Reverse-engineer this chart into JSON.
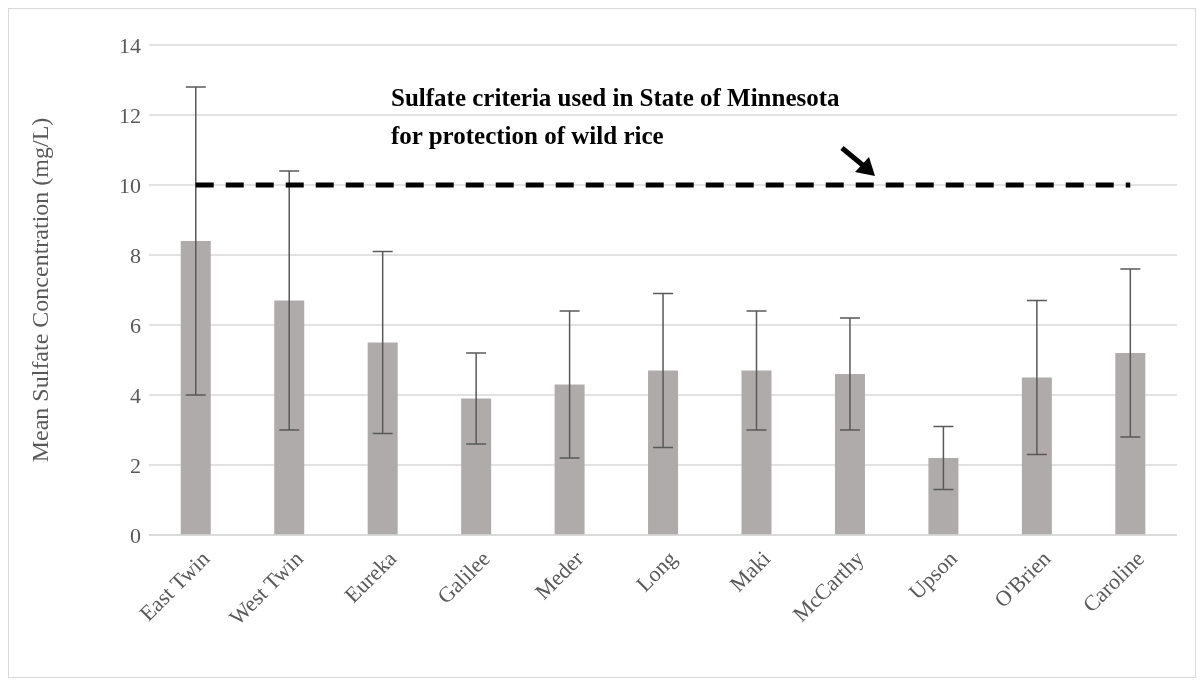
{
  "chart_data": {
    "type": "bar",
    "ylabel": "Mean Sulfate Concentration (mg/L)",
    "categories": [
      "East Twin",
      "West Twin",
      "Eureka",
      "Galilee",
      "Meder",
      "Long",
      "Maki",
      "McCarthy",
      "Upson",
      "O'Brien",
      "Caroline"
    ],
    "values": [
      8.4,
      6.7,
      5.5,
      3.9,
      4.3,
      4.7,
      4.7,
      4.6,
      2.2,
      4.5,
      5.2
    ],
    "errors": [
      4.4,
      3.7,
      2.6,
      1.3,
      2.1,
      2.2,
      1.7,
      1.6,
      0.9,
      2.2,
      2.4
    ],
    "color": "#afabab",
    "ylim": [
      0,
      14
    ],
    "yticks": [
      0,
      2,
      4,
      6,
      8,
      10,
      12,
      14
    ],
    "grid": "y",
    "ref_lines": [
      {
        "axis": "y",
        "value": 10,
        "label": "Sulfate criteria used in State of Minnesota for protection of wild rice",
        "color": "#000000",
        "line_style": "dashed"
      }
    ]
  }
}
